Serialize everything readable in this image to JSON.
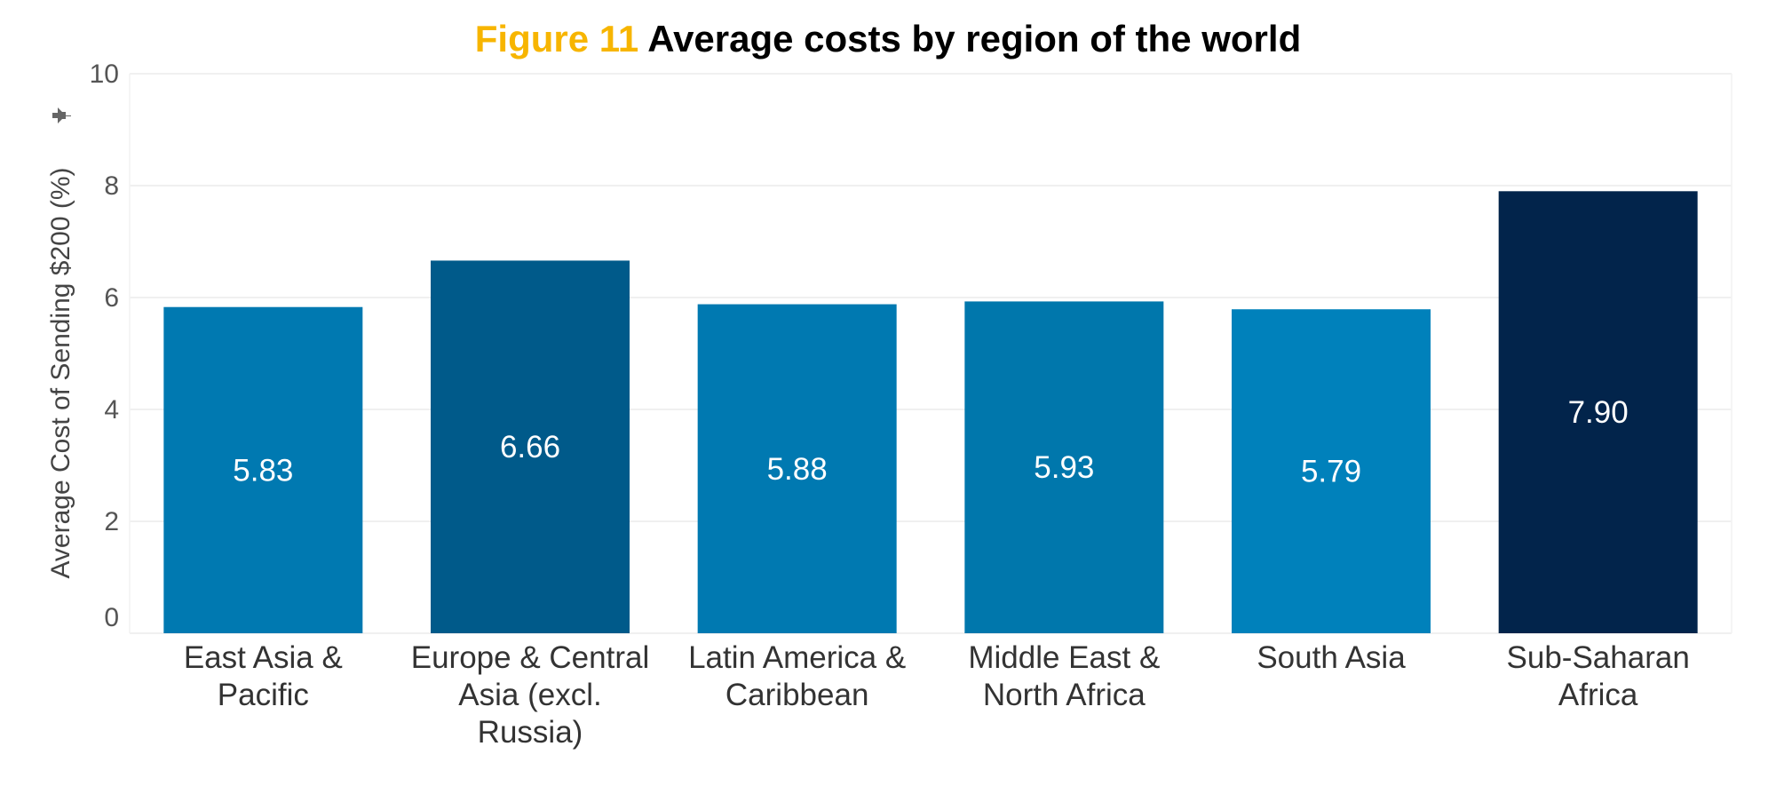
{
  "chart_data": {
    "type": "bar",
    "title_prefix": "Figure 11",
    "title": "Average costs by region of the world",
    "xlabel": "",
    "ylabel": "Average Cost of Sending $200 (%)",
    "ylim": [
      0,
      10
    ],
    "yticks": [
      "0",
      "2",
      "4",
      "6",
      "8",
      "10"
    ],
    "grid": true,
    "categories": [
      [
        "East Asia &",
        "Pacific"
      ],
      [
        "Europe & Central",
        "Asia (excl.",
        "Russia)"
      ],
      [
        "Latin America &",
        "Caribbean"
      ],
      [
        "Middle East &",
        "North Africa"
      ],
      [
        "South Asia"
      ],
      [
        "Sub-Saharan",
        "Africa"
      ]
    ],
    "values": [
      5.83,
      6.66,
      5.88,
      5.93,
      5.79,
      7.9
    ],
    "value_labels": [
      "5.83",
      "6.66",
      "5.88",
      "5.93",
      "5.79",
      "7.90"
    ],
    "colors": [
      "#0079b1",
      "#005a8a",
      "#0079b1",
      "#0077ac",
      "#0081bb",
      "#02244b"
    ],
    "axis_icon": "pin-icon"
  }
}
